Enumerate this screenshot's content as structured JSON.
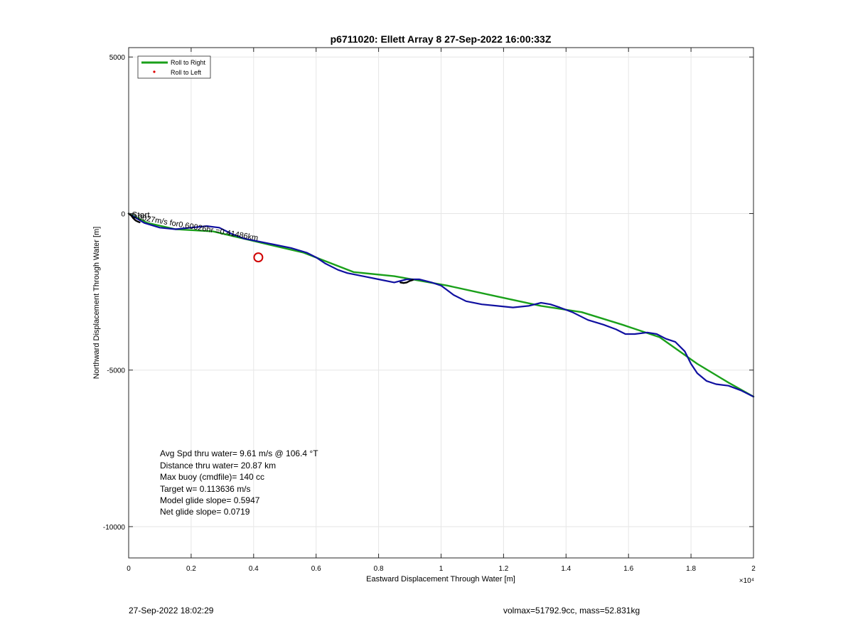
{
  "chart_data": {
    "type": "line",
    "title": "p6711020: Ellett Array 8 27-Sep-2022 16:00:33Z",
    "xlabel": "Eastward Displacement Through Water [m]",
    "ylabel": "Northward Displacement Through Water [m]",
    "xlim": [
      0,
      20000
    ],
    "ylim": [
      -11000,
      5300
    ],
    "grid": true,
    "x_ticks": [
      0,
      2000,
      4000,
      6000,
      8000,
      10000,
      12000,
      14000,
      16000,
      18000,
      20000
    ],
    "x_tick_labels": [
      "0",
      "0.2",
      "0.4",
      "0.6",
      "0.8",
      "1",
      "1.2",
      "1.4",
      "1.6",
      "1.8",
      "2"
    ],
    "x_exponent_label": "×10⁴",
    "y_ticks": [
      5000,
      0,
      -5000,
      -10000
    ],
    "y_tick_labels": [
      "5000",
      "0",
      "-5000",
      "-10000"
    ],
    "legend": {
      "position": "top-left",
      "entries": [
        {
          "label": "Roll to Right",
          "color": "#1aa01a",
          "style": "line"
        },
        {
          "label": "Roll to Left",
          "color": "#e00000",
          "style": "dot"
        }
      ]
    },
    "series": [
      {
        "color": "#1aa01a",
        "x": [
          0,
          600,
          1500,
          2700,
          4100,
          5600,
          7200,
          8500,
          10200,
          11800,
          13200,
          14500,
          15800,
          17000,
          18200,
          19200,
          20000
        ],
        "y": [
          0,
          -300,
          -500,
          -570,
          -900,
          -1250,
          -1870,
          -2000,
          -2300,
          -2650,
          -2950,
          -3150,
          -3550,
          -3950,
          -4800,
          -5400,
          -5850
        ]
      },
      {
        "color": "#1010a0",
        "x": [
          0,
          500,
          1000,
          1500,
          2000,
          2500,
          2900,
          3300,
          3700,
          4200,
          4700,
          5200,
          5700,
          6000,
          6300,
          6700,
          7000,
          7500,
          8000,
          8500,
          8900,
          9300,
          9700,
          10000,
          10400,
          10800,
          11300,
          11800,
          12300,
          12800,
          13200,
          13500,
          13800,
          14200,
          14700,
          15200,
          15600,
          15900,
          16200,
          16600,
          16900,
          17200,
          17500,
          17800,
          18000,
          18200,
          18500,
          18800,
          19200,
          19600,
          20000
        ],
        "y": [
          0,
          -300,
          -450,
          -500,
          -450,
          -400,
          -450,
          -650,
          -800,
          -900,
          -1000,
          -1100,
          -1250,
          -1400,
          -1600,
          -1800,
          -1900,
          -2000,
          -2100,
          -2200,
          -2100,
          -2100,
          -2200,
          -2300,
          -2600,
          -2800,
          -2900,
          -2950,
          -3000,
          -2950,
          -2850,
          -2900,
          -3000,
          -3150,
          -3400,
          -3550,
          -3700,
          -3850,
          -3850,
          -3800,
          -3850,
          -4000,
          -4100,
          -4400,
          -4800,
          -5100,
          -5350,
          -5450,
          -5500,
          -5650,
          -5850
        ]
      },
      {
        "color": "#000000",
        "x": [
          8700,
          8800,
          8900,
          9000,
          9100
        ],
        "y": [
          -2200,
          -2220,
          -2200,
          -2150,
          -2120
        ]
      },
      {
        "color": "#000000",
        "x": [
          0,
          80,
          150,
          220,
          300,
          350
        ],
        "y": [
          0,
          -60,
          -150,
          -220,
          -260,
          -280
        ]
      }
    ],
    "markers": [
      {
        "x": 4150,
        "y": -1400,
        "shape": "circle",
        "color": "#d00000"
      }
    ],
    "annotations": [
      {
        "text": "Start",
        "x": 100,
        "y": -20,
        "angle": 0
      },
      {
        "text": "0.0027m/s for0.60026hr =0.41486km",
        "x": 100,
        "y": -40,
        "angle": 10
      }
    ],
    "stats_text": [
      "Avg Spd thru water=  9.61 m/s @ 106.4 °T",
      "Distance thru water= 20.87 km",
      "Max buoy (cmdfile)= 140 cc",
      "Target w= 0.113636 m/s",
      "Model glide slope= 0.5947",
      "Net glide slope= 0.0719"
    ]
  },
  "footer": {
    "left": "27-Sep-2022 18:02:29",
    "right": "volmax=51792.9cc, mass=52.831kg"
  }
}
